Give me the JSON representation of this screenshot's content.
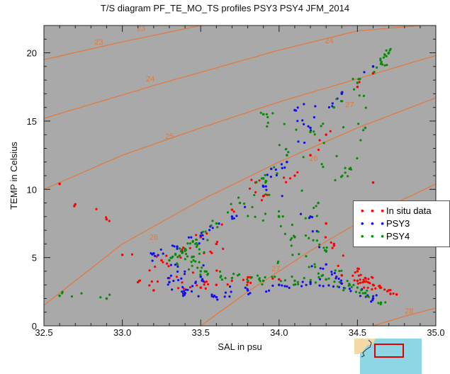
{
  "title": "T/S diagram PF_TE_MO_TS profiles PSY3 PSY4 JFM_2014",
  "colors": {
    "plot_bg": "#a9a9a9",
    "axis": "#222222",
    "density": "#e07a40",
    "insitu": "#ff0000",
    "psy3": "#1010ee",
    "psy4": "#0a8a0a",
    "minimap_sea": "#8fd6e4",
    "minimap_land": "#f3d9a6",
    "minimap_box": "#e00000"
  },
  "legend": {
    "insitu": "In situ data",
    "psy3": "PSY3",
    "psy4": "PSY4"
  },
  "chart_data": {
    "type": "scatter",
    "title": "T/S diagram PF_TE_MO_TS profiles PSY3 PSY4 JFM_2014",
    "xlabel": "SAL in psu",
    "ylabel": "TEMP in Celsius",
    "xlim": [
      32.5,
      35.0
    ],
    "ylim": [
      0,
      22
    ],
    "xticks": [
      "32.5",
      "33.0",
      "33.5",
      "34.0",
      "34.5",
      "35.0"
    ],
    "yticks": [
      "0",
      "5",
      "10",
      "15",
      "20"
    ],
    "grid": false,
    "legend_position": "right",
    "density_contours": [
      {
        "label": "23",
        "points": [
          [
            32.5,
            19.5
          ],
          [
            33.0,
            20.8
          ],
          [
            33.5,
            22.0
          ]
        ]
      },
      {
        "label": "24",
        "points": [
          [
            32.5,
            15.2
          ],
          [
            33.2,
            17.6
          ],
          [
            34.0,
            20.2
          ],
          [
            34.5,
            21.6
          ],
          [
            34.9,
            22.0
          ]
        ]
      },
      {
        "label": "25",
        "points": [
          [
            32.5,
            10.0
          ],
          [
            33.0,
            12.5
          ],
          [
            33.5,
            14.5
          ],
          [
            34.0,
            16.4
          ],
          [
            34.5,
            18.1
          ],
          [
            35.0,
            19.8
          ]
        ]
      },
      {
        "label": "26",
        "points": [
          [
            32.5,
            1.5
          ],
          [
            33.0,
            6.0
          ],
          [
            33.5,
            9.2
          ],
          [
            34.0,
            12.0
          ],
          [
            34.5,
            14.5
          ],
          [
            35.0,
            16.7
          ]
        ]
      },
      {
        "label": "27",
        "points": [
          [
            33.5,
            0.0
          ],
          [
            33.8,
            2.5
          ],
          [
            34.2,
            5.5
          ],
          [
            34.6,
            8.2
          ],
          [
            35.0,
            10.4
          ]
        ]
      },
      {
        "label": "28",
        "points": [
          [
            34.6,
            0.0
          ],
          [
            34.8,
            0.7
          ],
          [
            35.0,
            1.3
          ]
        ]
      }
    ],
    "contour_labels": [
      {
        "label": "23",
        "x": 33.12,
        "y": 21.6
      },
      {
        "label": "23",
        "x": 32.85,
        "y": 20.6
      },
      {
        "label": "24",
        "x": 34.32,
        "y": 20.7
      },
      {
        "label": "24",
        "x": 33.18,
        "y": 17.9
      },
      {
        "label": "25",
        "x": 33.3,
        "y": 13.7
      },
      {
        "label": "26",
        "x": 34.22,
        "y": 12.1
      },
      {
        "label": "26",
        "x": 33.2,
        "y": 6.3
      },
      {
        "label": "27",
        "x": 34.45,
        "y": 16.0
      },
      {
        "label": "27",
        "x": 33.98,
        "y": 4.0
      },
      {
        "label": "28",
        "x": 34.83,
        "y": 0.9
      }
    ],
    "series": [
      {
        "name": "In situ data",
        "color": "#ff0000",
        "description_points": [
          [
            32.6,
            10.4
          ],
          [
            32.7,
            8.9
          ],
          [
            32.9,
            7.8
          ],
          [
            33.0,
            5.2
          ],
          [
            33.1,
            3.2
          ],
          [
            33.2,
            2.6
          ],
          [
            33.3,
            3.5
          ],
          [
            33.4,
            2.4
          ],
          [
            33.5,
            2.8
          ],
          [
            33.6,
            3.0
          ],
          [
            33.8,
            3.2
          ],
          [
            34.0,
            3.4
          ],
          [
            33.5,
            6.5
          ],
          [
            33.7,
            8.5
          ],
          [
            33.9,
            9.5
          ],
          [
            34.1,
            11.0
          ],
          [
            34.3,
            14.0
          ],
          [
            34.5,
            17.5
          ],
          [
            34.6,
            18.5
          ],
          [
            34.5,
            4.0
          ],
          [
            34.55,
            3.5
          ],
          [
            34.6,
            3.0
          ],
          [
            34.7,
            2.6
          ],
          [
            34.75,
            2.3
          ],
          [
            34.65,
            2.8
          ],
          [
            34.5,
            3.3
          ],
          [
            34.4,
            3.7
          ],
          [
            34.35,
            6.0
          ],
          [
            34.3,
            7.5
          ],
          [
            34.6,
            10.5
          ],
          [
            33.25,
            4.8
          ],
          [
            33.4,
            5.5
          ],
          [
            33.6,
            6.0
          ],
          [
            33.85,
            10.5
          ],
          [
            34.2,
            12.5
          ]
        ]
      },
      {
        "name": "PSY3",
        "color": "#1010ee",
        "description_points": [
          [
            33.2,
            5.3
          ],
          [
            33.35,
            5.8
          ],
          [
            33.5,
            6.6
          ],
          [
            33.7,
            8.0
          ],
          [
            33.9,
            10.2
          ],
          [
            34.05,
            12.0
          ],
          [
            34.2,
            14.5
          ],
          [
            34.4,
            17.0
          ],
          [
            34.6,
            19.0
          ],
          [
            33.4,
            2.4
          ],
          [
            33.6,
            2.1
          ],
          [
            33.8,
            2.6
          ],
          [
            34.0,
            3.0
          ],
          [
            34.2,
            3.2
          ],
          [
            34.4,
            3.1
          ],
          [
            34.55,
            2.4
          ],
          [
            34.6,
            2.0
          ],
          [
            33.3,
            3.2
          ],
          [
            33.5,
            3.6
          ],
          [
            34.3,
            4.5
          ],
          [
            34.2,
            8.0
          ],
          [
            34.1,
            15.8
          ],
          [
            33.95,
            11.5
          ]
        ]
      },
      {
        "name": "PSY4",
        "color": "#0a8a0a",
        "description_points": [
          [
            33.3,
            4.8
          ],
          [
            33.45,
            6.2
          ],
          [
            33.6,
            7.5
          ],
          [
            33.75,
            9.0
          ],
          [
            33.9,
            10.8
          ],
          [
            34.05,
            12.5
          ],
          [
            34.2,
            14.2
          ],
          [
            34.35,
            16.0
          ],
          [
            34.5,
            17.8
          ],
          [
            34.65,
            19.2
          ],
          [
            34.7,
            20.0
          ],
          [
            33.5,
            4.0
          ],
          [
            33.7,
            3.5
          ],
          [
            33.9,
            3.3
          ],
          [
            34.1,
            3.3
          ],
          [
            34.3,
            3.4
          ],
          [
            34.45,
            3.0
          ],
          [
            34.55,
            2.4
          ],
          [
            34.65,
            1.7
          ],
          [
            33.4,
            5.5
          ],
          [
            34.1,
            6.5
          ],
          [
            34.25,
            9.0
          ],
          [
            34.45,
            11.5
          ],
          [
            34.55,
            14.5
          ],
          [
            33.9,
            15.5
          ],
          [
            34.0,
            8.0
          ],
          [
            34.3,
            5.5
          ],
          [
            32.6,
            2.2
          ],
          [
            32.9,
            2.0
          ]
        ]
      }
    ]
  }
}
